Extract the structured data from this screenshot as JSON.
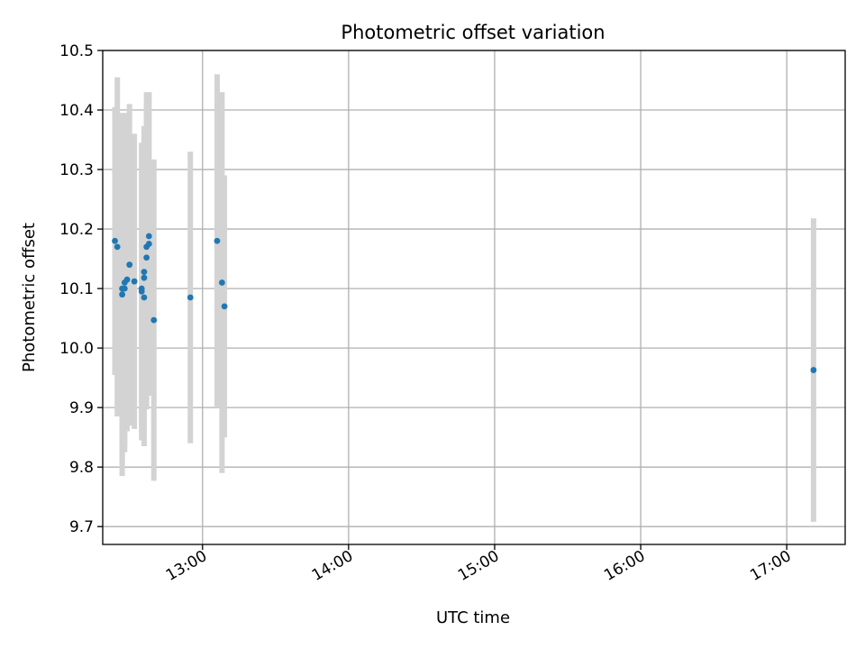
{
  "chart_data": {
    "type": "scatter",
    "title": "Photometric offset variation",
    "xlabel": "UTC time",
    "ylabel": "Photometric offset",
    "xlim": [
      "12:19",
      "17:24"
    ],
    "ylim": [
      9.67,
      10.5
    ],
    "x_ticks": [
      "13:00",
      "14:00",
      "15:00",
      "16:00",
      "17:00"
    ],
    "y_ticks": [
      "9.7",
      "9.8",
      "9.9",
      "10.0",
      "10.1",
      "10.2",
      "10.3",
      "10.4",
      "10.5"
    ],
    "grid": true,
    "point_color": "#1f77b4",
    "errorbar_color": "#d3d3d3",
    "points": [
      {
        "x": "12:24",
        "y": 10.18,
        "err": 0.225
      },
      {
        "x": "12:25",
        "y": 10.17,
        "err": 0.285
      },
      {
        "x": "12:27",
        "y": 10.1,
        "err": 0.295
      },
      {
        "x": "12:27",
        "y": 10.09,
        "err": 0.305
      },
      {
        "x": "12:28",
        "y": 10.11,
        "err": 0.285
      },
      {
        "x": "12:28",
        "y": 10.1,
        "err": 0.26
      },
      {
        "x": "12:29",
        "y": 10.115,
        "err": 0.255
      },
      {
        "x": "12:30",
        "y": 10.14,
        "err": 0.27
      },
      {
        "x": "12:32",
        "y": 10.112,
        "err": 0.248
      },
      {
        "x": "12:35",
        "y": 10.1,
        "err": 0.24
      },
      {
        "x": "12:35",
        "y": 10.095,
        "err": 0.25
      },
      {
        "x": "12:36",
        "y": 10.085,
        "err": 0.25
      },
      {
        "x": "12:36",
        "y": 10.118,
        "err": 0.255
      },
      {
        "x": "12:36",
        "y": 10.128,
        "err": 0.245
      },
      {
        "x": "12:37",
        "y": 10.17,
        "err": 0.26
      },
      {
        "x": "12:37",
        "y": 10.152,
        "err": 0.255
      },
      {
        "x": "12:38",
        "y": 10.175,
        "err": 0.255
      },
      {
        "x": "12:38",
        "y": 10.188,
        "err": 0.24
      },
      {
        "x": "12:40",
        "y": 10.047,
        "err": 0.27
      },
      {
        "x": "12:55",
        "y": 10.085,
        "err": 0.245
      },
      {
        "x": "13:06",
        "y": 10.18,
        "err": 0.28
      },
      {
        "x": "13:08",
        "y": 10.11,
        "err": 0.32
      },
      {
        "x": "13:09",
        "y": 10.07,
        "err": 0.22
      },
      {
        "x": "17:11",
        "y": 9.963,
        "err": 0.255
      }
    ]
  }
}
